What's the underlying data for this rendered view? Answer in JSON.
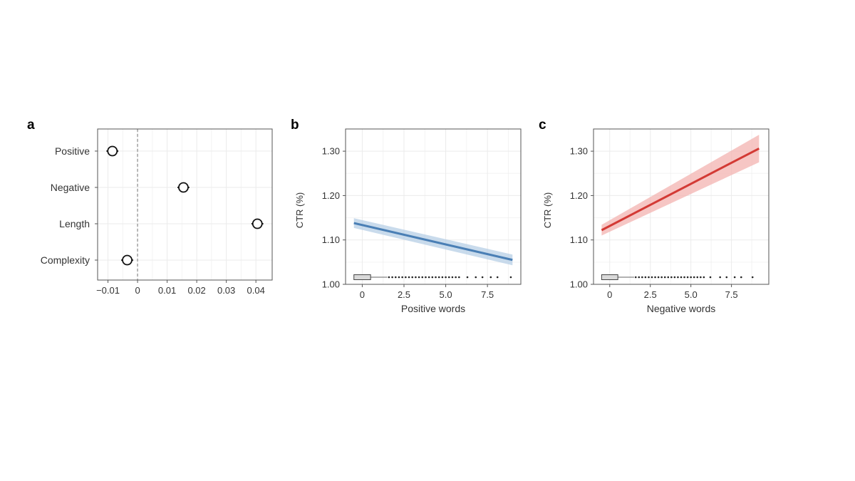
{
  "chart_data": [
    {
      "panel": "a",
      "type": "scatter",
      "categories": [
        "Positive",
        "Negative",
        "Length",
        "Complexity"
      ],
      "values": [
        -0.0085,
        0.0155,
        0.0405,
        -0.0035
      ],
      "ci": [
        [
          -0.0105,
          -0.0065
        ],
        [
          0.0135,
          0.0175
        ],
        [
          0.0385,
          0.0425
        ],
        [
          -0.0055,
          -0.0015
        ]
      ],
      "xticks": [
        -0.01,
        0,
        0.01,
        0.02,
        0.03,
        0.04
      ],
      "xtick_labels": [
        "−0.01",
        "0",
        "0.01",
        "0.02",
        "0.03",
        "0.04"
      ],
      "xlim": [
        -0.0135,
        0.0455
      ],
      "reference_line": 0,
      "grid": true
    },
    {
      "panel": "b",
      "type": "line",
      "x": [
        -0.5,
        9.0
      ],
      "y": [
        1.138,
        1.055
      ],
      "band_lower": [
        1.127,
        1.043
      ],
      "band_upper": [
        1.149,
        1.067
      ],
      "color": "#4a7fb5",
      "band_color": "#b7cfe6",
      "xlabel": "Positive words",
      "ylabel": "CTR (%)",
      "xticks": [
        0,
        2.5,
        5.0,
        7.5
      ],
      "xtick_labels": [
        "0",
        "2.5",
        "5.0",
        "7.5"
      ],
      "yticks": [
        1.0,
        1.1,
        1.2,
        1.3
      ],
      "ytick_labels": [
        "1.00",
        "1.10",
        "1.20",
        "1.30"
      ],
      "xlim": [
        -1.0,
        9.5
      ],
      "ylim": [
        1.0,
        1.35
      ],
      "boxplot": {
        "min": -0.5,
        "q1": -0.5,
        "median": -0.5,
        "q3": 0.5,
        "whisker_high": 1.5
      },
      "rug": [
        1.6,
        1.8,
        2.0,
        2.2,
        2.4,
        2.6,
        2.8,
        3.0,
        3.2,
        3.4,
        3.6,
        3.8,
        4.0,
        4.2,
        4.4,
        4.6,
        4.8,
        5.0,
        5.2,
        5.4,
        5.6,
        5.8,
        6.3,
        6.8,
        7.2,
        7.7,
        8.1,
        8.9
      ],
      "grid": true
    },
    {
      "panel": "c",
      "type": "line",
      "x": [
        -0.5,
        9.2
      ],
      "y": [
        1.122,
        1.306
      ],
      "band_lower": [
        1.11,
        1.275
      ],
      "band_upper": [
        1.134,
        1.337
      ],
      "color": "#d33a35",
      "band_color": "#f3b3b0",
      "xlabel": "Negative words",
      "ylabel": "CTR (%)",
      "xticks": [
        0,
        2.5,
        5.0,
        7.5
      ],
      "xtick_labels": [
        "0",
        "2.5",
        "5.0",
        "7.5"
      ],
      "yticks": [
        1.0,
        1.1,
        1.2,
        1.3
      ],
      "ytick_labels": [
        "1.00",
        "1.10",
        "1.20",
        "1.30"
      ],
      "xlim": [
        -1.0,
        9.8
      ],
      "ylim": [
        1.0,
        1.35
      ],
      "boxplot": {
        "min": -0.5,
        "q1": -0.5,
        "median": -0.5,
        "q3": 0.5,
        "whisker_high": 1.5
      },
      "rug": [
        1.6,
        1.8,
        2.0,
        2.2,
        2.4,
        2.6,
        2.8,
        3.0,
        3.2,
        3.4,
        3.6,
        3.8,
        4.0,
        4.2,
        4.4,
        4.6,
        4.8,
        5.0,
        5.2,
        5.4,
        5.6,
        5.8,
        6.2,
        6.8,
        7.2,
        7.7,
        8.1,
        8.8
      ],
      "grid": true
    }
  ],
  "labels": {
    "panel_a": "a",
    "panel_b": "b",
    "panel_c": "c"
  }
}
